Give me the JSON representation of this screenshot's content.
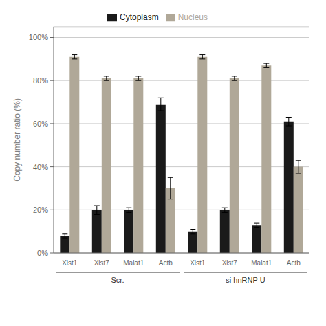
{
  "chart_data": {
    "type": "bar",
    "ylabel": "Copy number ratio (%)",
    "categories": [
      "Xist1",
      "Xist7",
      "Malat1",
      "Actb",
      "Xist1",
      "Xist7",
      "Malat1",
      "Actb"
    ],
    "annotations": [
      "Scr.",
      "si hnRNP U"
    ],
    "ylim": [
      0,
      105
    ],
    "yticks": [
      {
        "value": 0,
        "label": "0%"
      },
      {
        "value": 20,
        "label": "20%"
      },
      {
        "value": 40,
        "label": "40%"
      },
      {
        "value": 60,
        "label": "60%"
      },
      {
        "value": 80,
        "label": "80%"
      },
      {
        "value": 100,
        "label": "100%"
      }
    ],
    "grid": true,
    "legend": "top",
    "series": [
      {
        "name": "Cytoplasm",
        "color": "#1a1a1a",
        "values": [
          8,
          20,
          20,
          69,
          10,
          20,
          13,
          61
        ],
        "errors": [
          1,
          2,
          1,
          3,
          1,
          1,
          1,
          2
        ]
      },
      {
        "name": "Nucleus",
        "color": "#b0a898",
        "values": [
          91,
          81,
          81,
          30,
          91,
          81,
          87,
          40
        ],
        "errors": [
          1,
          1,
          1,
          5,
          1,
          1,
          1,
          3
        ]
      }
    ]
  }
}
